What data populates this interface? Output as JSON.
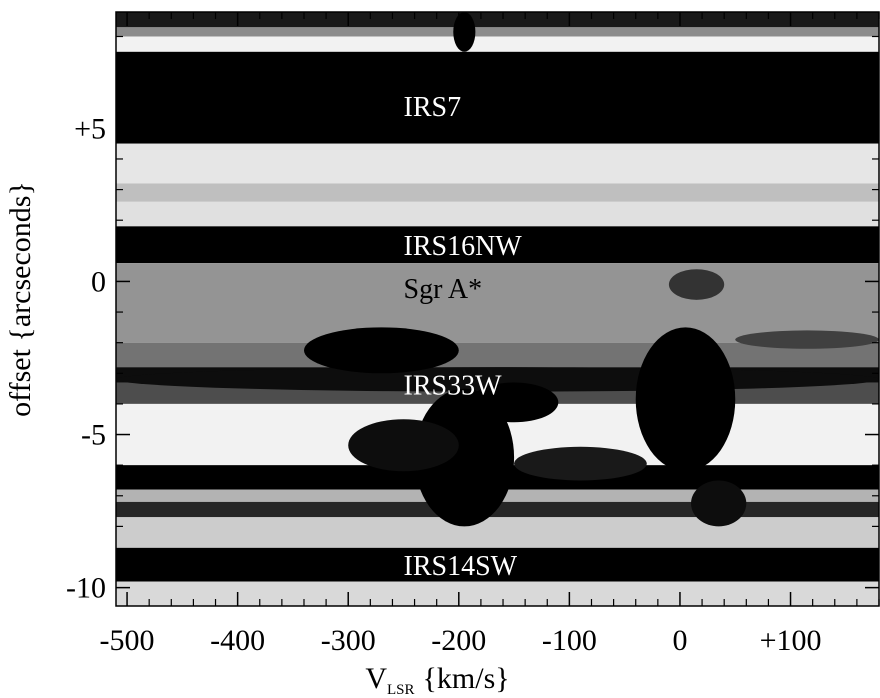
{
  "chart_data": {
    "type": "heatmap",
    "title": "",
    "xlabel": "V",
    "xlabel_sub": "LSR",
    "xlabel_units": "{km/s}",
    "ylabel": "offset {arcseconds}",
    "xlim": [
      -510,
      180
    ],
    "ylim": [
      -10.6,
      8.8
    ],
    "colormap": "grayscale (white = low, black = high)",
    "x_ticks": [
      {
        "value": -500,
        "label": "-500"
      },
      {
        "value": -400,
        "label": "-400"
      },
      {
        "value": -300,
        "label": "-300"
      },
      {
        "value": -200,
        "label": "-200"
      },
      {
        "value": -100,
        "label": "-100"
      },
      {
        "value": 0,
        "label": "0"
      },
      {
        "value": 100,
        "label": "+100"
      }
    ],
    "y_ticks": [
      {
        "value": 5,
        "label": "+5"
      },
      {
        "value": 0,
        "label": "0"
      },
      {
        "value": -5,
        "label": "-5"
      },
      {
        "value": -10,
        "label": "-10"
      }
    ],
    "annotations": [
      {
        "text": "IRS7",
        "x": -250,
        "y": 5.7,
        "color": "#ffffff"
      },
      {
        "text": "IRS16NW",
        "x": -250,
        "y": 1.15,
        "color": "#ffffff"
      },
      {
        "text": "Sgr A*",
        "x": -250,
        "y": -0.25,
        "color": "#000000"
      },
      {
        "text": "IRS33W",
        "x": -250,
        "y": -3.4,
        "color": "#ffffff"
      },
      {
        "text": "IRS14SW",
        "x": -250,
        "y": -9.3,
        "color": "#ffffff"
      }
    ],
    "horizontal_bands": [
      {
        "y_top": 8.8,
        "y_bottom": 8.3,
        "value": 0.9
      },
      {
        "y_top": 8.3,
        "y_bottom": 8.0,
        "value": 0.45
      },
      {
        "y_top": 8.0,
        "y_bottom": 7.5,
        "value": 0.05
      },
      {
        "y_top": 7.5,
        "y_bottom": 4.5,
        "value": 1.0
      },
      {
        "y_top": 4.5,
        "y_bottom": 3.2,
        "value": 0.1
      },
      {
        "y_top": 3.2,
        "y_bottom": 2.6,
        "value": 0.25
      },
      {
        "y_top": 2.6,
        "y_bottom": 1.8,
        "value": 0.12
      },
      {
        "y_top": 1.8,
        "y_bottom": 0.6,
        "value": 1.0
      },
      {
        "y_top": 0.6,
        "y_bottom": -2.0,
        "value": 0.42
      },
      {
        "y_top": -2.0,
        "y_bottom": -2.8,
        "value": 0.55
      },
      {
        "y_top": -2.8,
        "y_bottom": -3.3,
        "value": 0.95
      },
      {
        "y_top": -3.3,
        "y_bottom": -4.0,
        "value": 0.7
      },
      {
        "y_top": -4.0,
        "y_bottom": -6.0,
        "value": 0.05
      },
      {
        "y_top": -6.0,
        "y_bottom": -6.8,
        "value": 1.0
      },
      {
        "y_top": -6.8,
        "y_bottom": -7.2,
        "value": 0.3
      },
      {
        "y_top": -7.2,
        "y_bottom": -7.7,
        "value": 0.85
      },
      {
        "y_top": -7.7,
        "y_bottom": -8.7,
        "value": 0.2
      },
      {
        "y_top": -8.7,
        "y_bottom": -9.8,
        "value": 1.0
      },
      {
        "y_top": -9.8,
        "y_bottom": -10.6,
        "value": 0.15
      }
    ],
    "emission_features": [
      {
        "x": [
          -205,
          -185
        ],
        "y": [
          7.5,
          8.8
        ],
        "value": 1.0
      },
      {
        "x": [
          -510,
          180
        ],
        "y": [
          -2.8,
          -3.6
        ],
        "value": 0.95
      },
      {
        "x": [
          -340,
          -200
        ],
        "y": [
          -1.5,
          -3.0
        ],
        "value": 1.0
      },
      {
        "x": [
          -240,
          -150
        ],
        "y": [
          -3.5,
          -8.0
        ],
        "value": 1.0
      },
      {
        "x": [
          -190,
          -110
        ],
        "y": [
          -3.3,
          -4.6
        ],
        "value": 1.0
      },
      {
        "x": [
          -40,
          50
        ],
        "y": [
          -1.5,
          -6.2
        ],
        "value": 1.0
      },
      {
        "x": [
          -300,
          -200
        ],
        "y": [
          -4.5,
          -6.2
        ],
        "value": 0.95
      },
      {
        "x": [
          -150,
          -30
        ],
        "y": [
          -5.4,
          -6.5
        ],
        "value": 0.9
      },
      {
        "x": [
          10,
          60
        ],
        "y": [
          -6.5,
          -8.0
        ],
        "value": 0.95
      },
      {
        "x": [
          -10,
          40
        ],
        "y": [
          0.4,
          -0.6
        ],
        "value": 0.8
      },
      {
        "x": [
          50,
          180
        ],
        "y": [
          -1.6,
          -2.2
        ],
        "value": 0.75
      }
    ]
  }
}
